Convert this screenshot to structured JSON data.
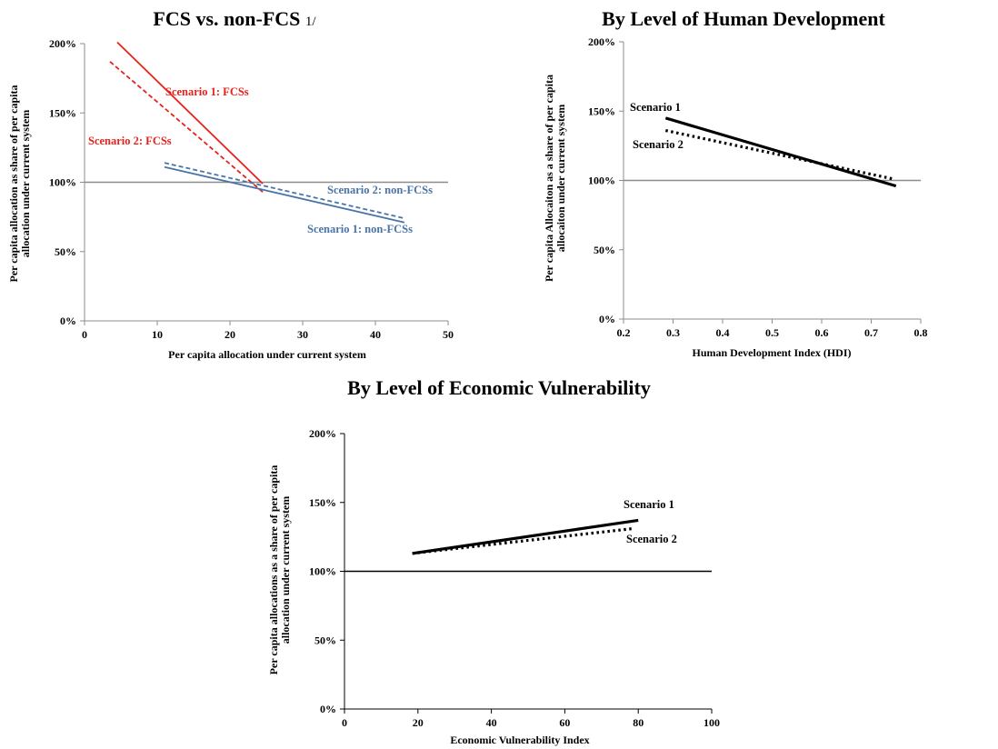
{
  "chart_data": [
    {
      "type": "line",
      "title": "FCS vs. non-FCS",
      "title_note": "1/",
      "xlabel": "Per capita allocation under current system",
      "ylabel_lines": [
        "Per capita allocation as share of per capita",
        "allocation under current system"
      ],
      "xlim": [
        0,
        50
      ],
      "ylim": [
        0,
        200
      ],
      "x_ticks": [
        "0",
        "10",
        "20",
        "30",
        "40",
        "50"
      ],
      "y_ticks": [
        "0%",
        "50%",
        "100%",
        "150%",
        "200%"
      ],
      "reference_line": 100,
      "grid": false,
      "legend": "none",
      "series": [
        {
          "name": "Scenario 1: FCSs",
          "color": "#e8211b",
          "style": "solid",
          "x": [
            4.5,
            24.5
          ],
          "y": [
            201,
            99
          ]
        },
        {
          "name": "Scenario 2: FCSs",
          "color": "#e8211b",
          "style": "dashed",
          "x": [
            3.5,
            24.5
          ],
          "y": [
            187,
            93
          ]
        },
        {
          "name": "Scenario 1: non-FCSs",
          "color": "#4a74a8",
          "style": "solid",
          "x": [
            11,
            44
          ],
          "y": [
            111,
            71
          ]
        },
        {
          "name": "Scenario 2: non-FCSs",
          "color": "#4a74a8",
          "style": "dashed",
          "x": [
            11,
            44
          ],
          "y": [
            114,
            74
          ]
        }
      ]
    },
    {
      "type": "line",
      "title": "By Level of Human Development",
      "xlabel": "Human Development Index (HDI)",
      "ylabel_lines": [
        "Per capita Allocaiton as a share of per capita",
        "allocaiton under current system"
      ],
      "xlim": [
        0.2,
        0.8
      ],
      "ylim": [
        0,
        200
      ],
      "x_ticks": [
        "0.2",
        "0.3",
        "0.4",
        "0.5",
        "0.6",
        "0.7",
        "0.8"
      ],
      "y_ticks": [
        "0%",
        "50%",
        "100%",
        "150%",
        "200%"
      ],
      "reference_line": 100,
      "grid": false,
      "legend": "none",
      "series": [
        {
          "name": "Scenario 1",
          "color": "#000000",
          "style": "solid",
          "x": [
            0.285,
            0.75
          ],
          "y": [
            145,
            96
          ]
        },
        {
          "name": "Scenario 2",
          "color": "#000000",
          "style": "dotted",
          "x": [
            0.285,
            0.745
          ],
          "y": [
            136,
            101
          ]
        }
      ]
    },
    {
      "type": "line",
      "title": "By Level of Economic Vulnerability",
      "xlabel": "Economic Vulnerability Index",
      "ylabel_lines": [
        "Per capita allocations as a share of per capita",
        "allocation under current system"
      ],
      "xlim": [
        0,
        100
      ],
      "ylim": [
        0,
        200
      ],
      "x_ticks": [
        "0",
        "20",
        "40",
        "60",
        "80",
        "100"
      ],
      "y_ticks": [
        "0%",
        "50%",
        "100%",
        "150%",
        "200%"
      ],
      "reference_line": 100,
      "grid": false,
      "legend": "none",
      "series": [
        {
          "name": "Scenario 1",
          "color": "#000000",
          "style": "solid",
          "x": [
            18.5,
            80
          ],
          "y": [
            113,
            137
          ]
        },
        {
          "name": "Scenario 2",
          "color": "#000000",
          "style": "dotted",
          "x": [
            18.5,
            78.5
          ],
          "y": [
            113,
            131
          ]
        }
      ]
    }
  ]
}
